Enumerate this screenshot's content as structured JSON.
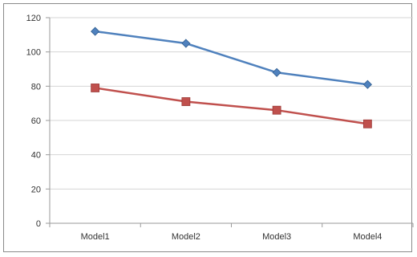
{
  "chart_data": {
    "type": "line",
    "categories": [
      "Model1",
      "Model2",
      "Model3",
      "Model4"
    ],
    "series": [
      {
        "values": [
          112,
          105,
          88,
          81
        ],
        "color": "#4f81bd",
        "marker": "diamond"
      },
      {
        "values": [
          79,
          71,
          66,
          58
        ],
        "color": "#c0504d",
        "marker": "square"
      }
    ],
    "title": "",
    "xlabel": "",
    "ylabel": "",
    "ylim": [
      0,
      120
    ],
    "yticks": [
      0,
      20,
      40,
      60,
      80,
      100,
      120
    ],
    "grid": true,
    "legend": "none"
  }
}
